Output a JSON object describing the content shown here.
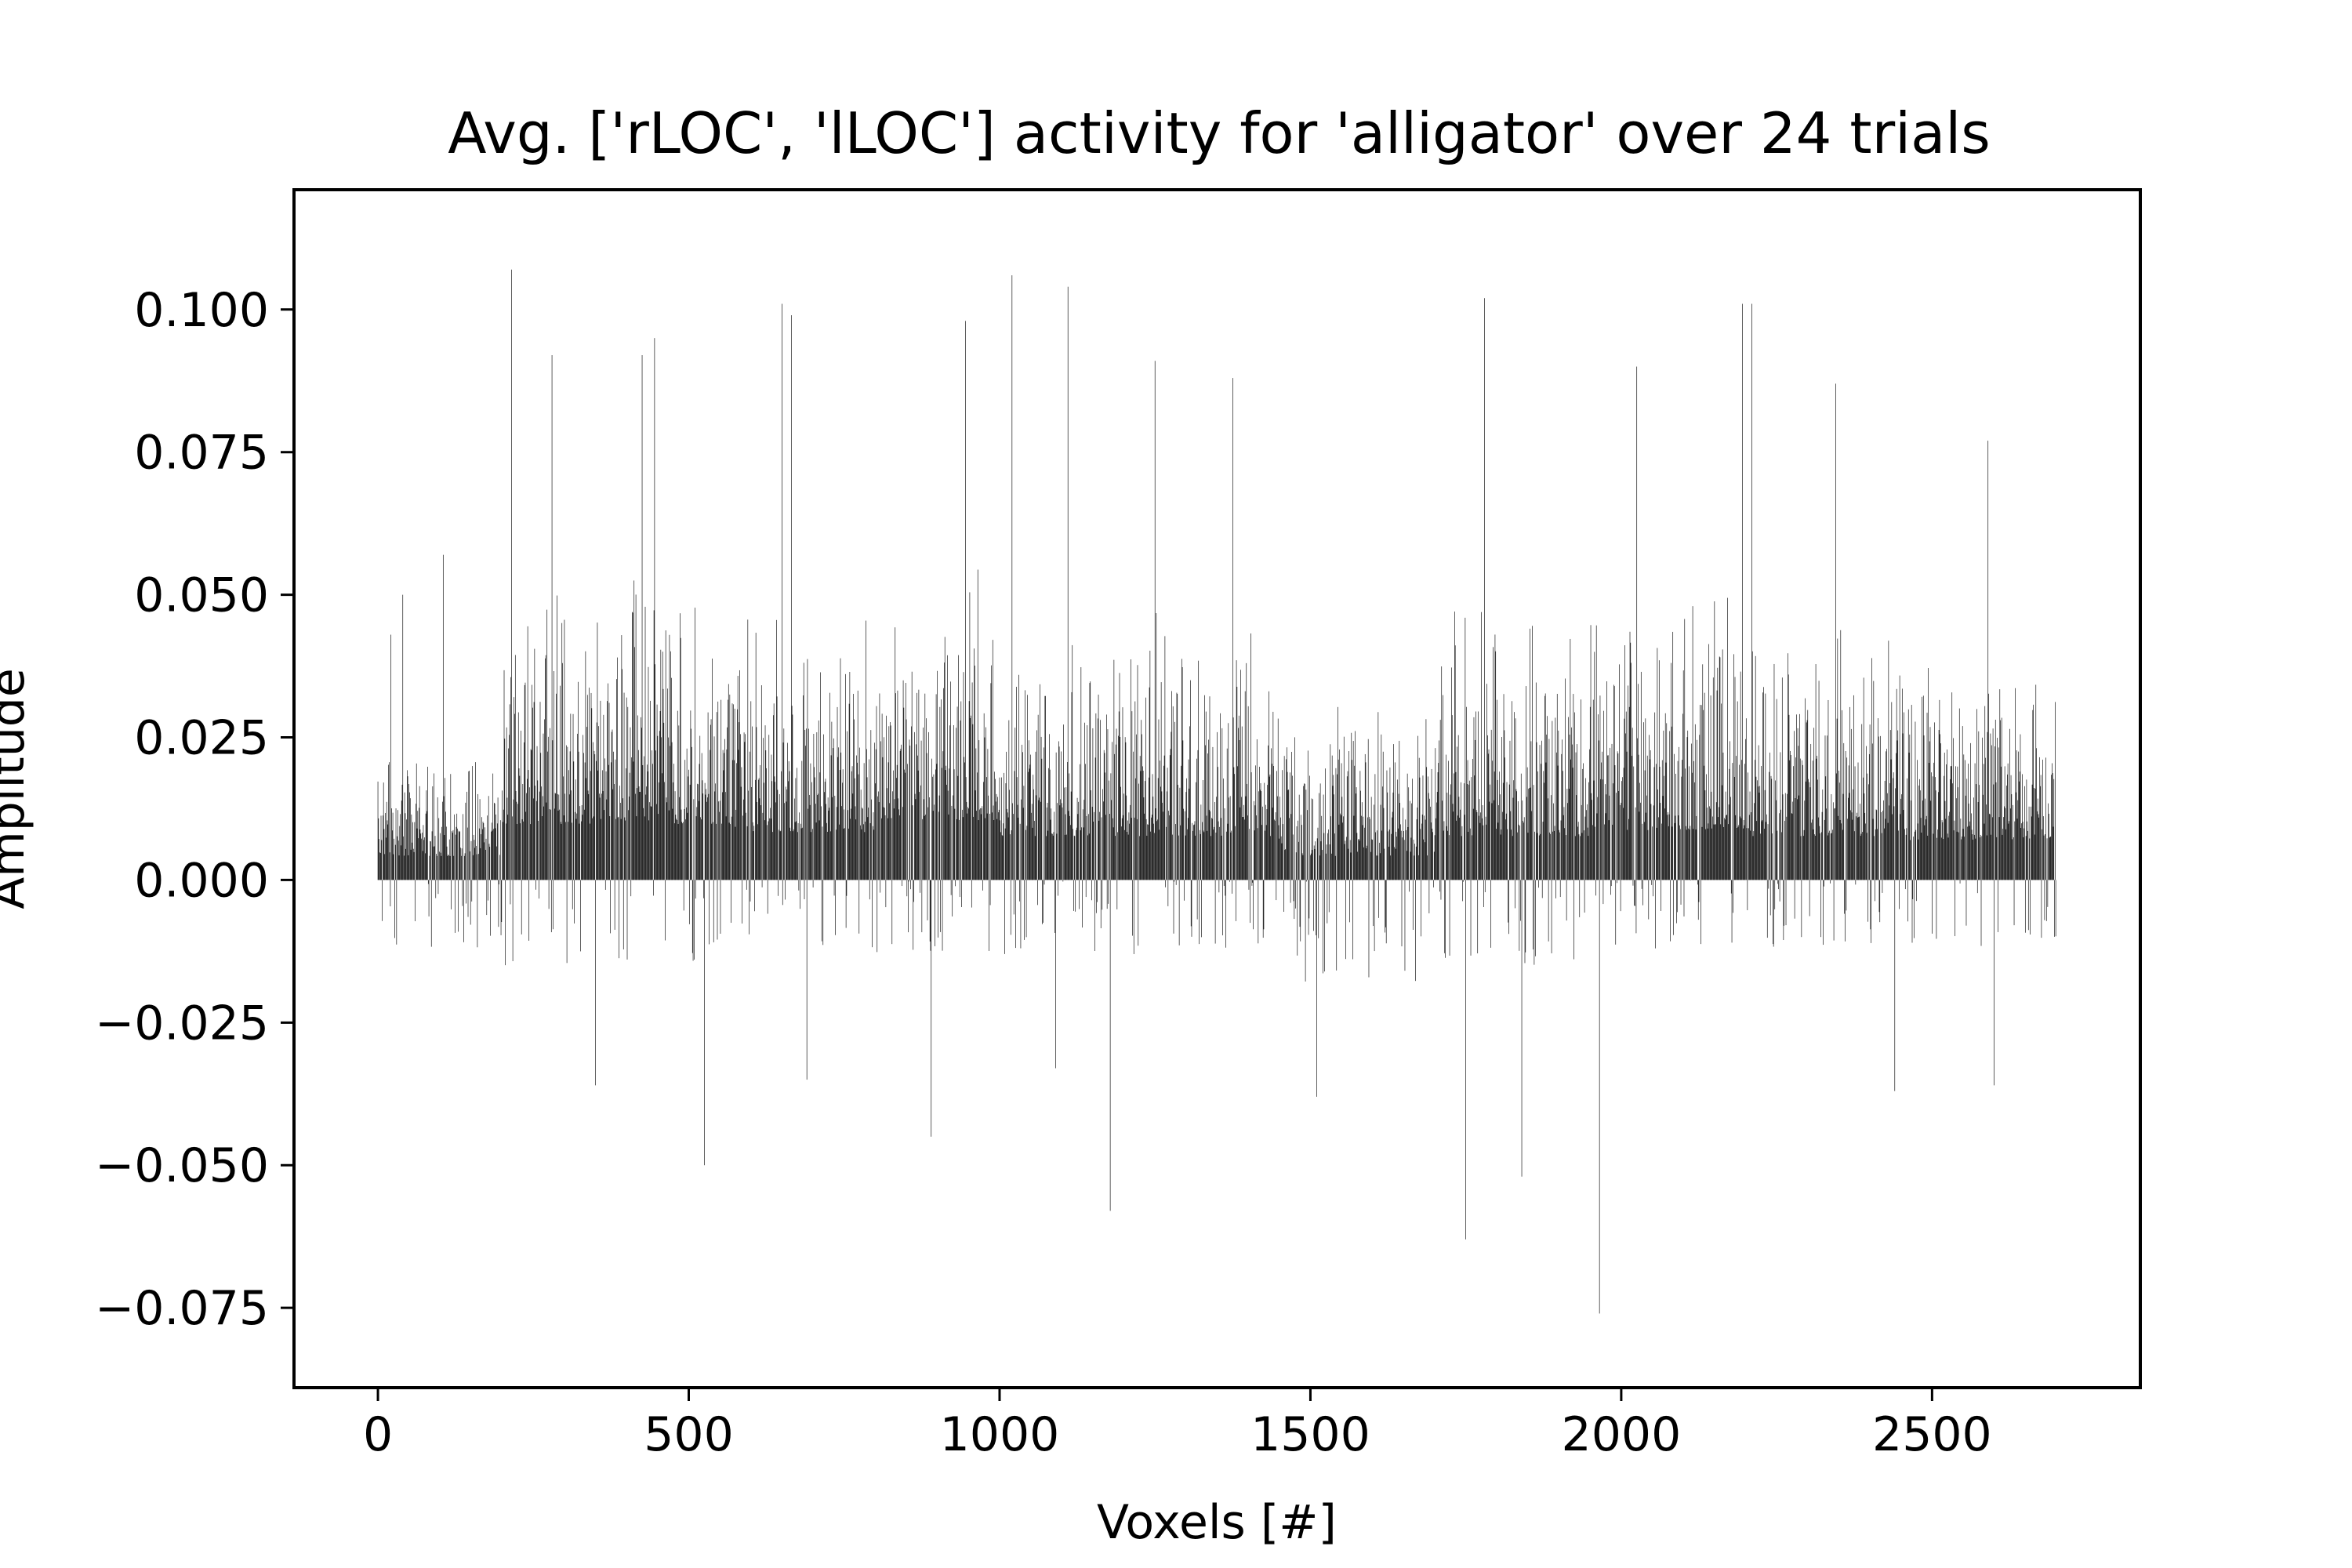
{
  "chart_data": {
    "type": "bar",
    "title": "Avg. ['rLOC', 'lLOC'] activity for 'alligator' over 24 trials",
    "xlabel": "Voxels [#]",
    "ylabel": "Amplitude",
    "xlim": [
      -135,
      2835
    ],
    "ylim": [
      -0.089,
      0.121
    ],
    "xticks": [
      0,
      500,
      1000,
      1500,
      2000,
      2500
    ],
    "xtick_labels": [
      "0",
      "500",
      "1000",
      "1500",
      "2000",
      "2500"
    ],
    "yticks": [
      -0.075,
      -0.05,
      -0.025,
      0.0,
      0.025,
      0.05,
      0.075,
      0.1
    ],
    "ytick_labels": [
      "−0.075",
      "−0.050",
      "−0.025",
      "0.000",
      "0.025",
      "0.050",
      "0.075",
      "0.100"
    ],
    "grid": false,
    "bar_color": "#000000",
    "n_voxels": 2700,
    "segments": [
      {
        "x0": 0,
        "x1": 200,
        "base": 0.012,
        "spread": 0.02,
        "neg": 0.012
      },
      {
        "x0": 200,
        "x1": 560,
        "base": 0.028,
        "spread": 0.045,
        "neg": 0.015
      },
      {
        "x0": 560,
        "x1": 800,
        "base": 0.024,
        "spread": 0.04,
        "neg": 0.012
      },
      {
        "x0": 800,
        "x1": 1000,
        "base": 0.03,
        "spread": 0.045,
        "neg": 0.013
      },
      {
        "x0": 1000,
        "x1": 1250,
        "base": 0.022,
        "spread": 0.038,
        "neg": 0.014
      },
      {
        "x0": 1250,
        "x1": 1450,
        "base": 0.022,
        "spread": 0.04,
        "neg": 0.012
      },
      {
        "x0": 1450,
        "x1": 1700,
        "base": 0.012,
        "spread": 0.028,
        "neg": 0.018
      },
      {
        "x0": 1700,
        "x1": 1950,
        "base": 0.022,
        "spread": 0.04,
        "neg": 0.015
      },
      {
        "x0": 1950,
        "x1": 2200,
        "base": 0.025,
        "spread": 0.042,
        "neg": 0.012
      },
      {
        "x0": 2200,
        "x1": 2450,
        "base": 0.022,
        "spread": 0.04,
        "neg": 0.012
      },
      {
        "x0": 2450,
        "x1": 2700,
        "base": 0.02,
        "spread": 0.035,
        "neg": 0.012
      }
    ],
    "peaks": [
      {
        "x": 21,
        "value": 0.043
      },
      {
        "x": 40,
        "value": 0.05
      },
      {
        "x": 105,
        "value": 0.057
      },
      {
        "x": 215,
        "value": 0.107
      },
      {
        "x": 280,
        "value": 0.092
      },
      {
        "x": 425,
        "value": 0.092
      },
      {
        "x": 445,
        "value": 0.095
      },
      {
        "x": 650,
        "value": 0.101
      },
      {
        "x": 665,
        "value": 0.099
      },
      {
        "x": 945,
        "value": 0.098
      },
      {
        "x": 1020,
        "value": 0.106
      },
      {
        "x": 1110,
        "value": 0.104
      },
      {
        "x": 1250,
        "value": 0.091
      },
      {
        "x": 1375,
        "value": 0.088
      },
      {
        "x": 1780,
        "value": 0.102
      },
      {
        "x": 2025,
        "value": 0.09
      },
      {
        "x": 2195,
        "value": 0.101
      },
      {
        "x": 2210,
        "value": 0.101
      },
      {
        "x": 2345,
        "value": 0.087
      },
      {
        "x": 2590,
        "value": 0.077
      },
      {
        "x": 525,
        "value": -0.05
      },
      {
        "x": 890,
        "value": -0.045
      },
      {
        "x": 1178,
        "value": -0.058
      },
      {
        "x": 1750,
        "value": -0.063
      },
      {
        "x": 1840,
        "value": -0.052
      },
      {
        "x": 1965,
        "value": -0.076
      },
      {
        "x": 690,
        "value": -0.035
      },
      {
        "x": 1090,
        "value": -0.033
      },
      {
        "x": 1510,
        "value": -0.038
      },
      {
        "x": 2440,
        "value": -0.037
      },
      {
        "x": 2600,
        "value": -0.036
      },
      {
        "x": 350,
        "value": -0.036
      }
    ]
  }
}
